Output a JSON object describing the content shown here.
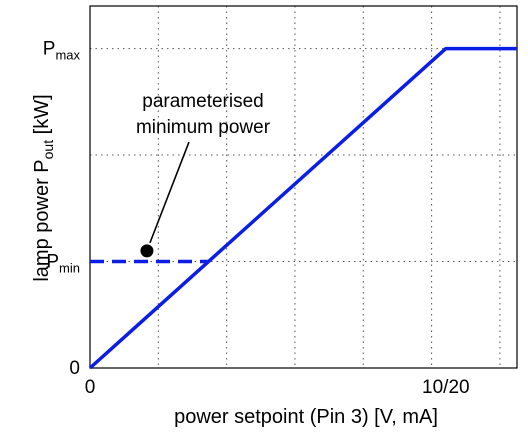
{
  "chart_data": {
    "type": "line",
    "title": "",
    "xlabel": "power setpoint (Pin 3) [V, mA]",
    "ylabel": {
      "main": "lamp power P",
      "sub": "out",
      "unit": " [kW]"
    },
    "x_ticks": [
      {
        "value": 0,
        "label": "0"
      },
      {
        "value": 10,
        "label": "10/20"
      }
    ],
    "y_ticks": [
      {
        "value": 0,
        "label": "0",
        "sub": ""
      },
      {
        "value": 2,
        "label": "P",
        "sub": "min"
      },
      {
        "value": 6,
        "label": "P",
        "sub": "max"
      }
    ],
    "xlim": [
      0,
      12
    ],
    "ylim": [
      0,
      6.8
    ],
    "grid": true,
    "series": [
      {
        "style": "solid",
        "color": "#0a1ee6",
        "x": [
          0,
          3.33,
          10,
          12
        ],
        "y": [
          0,
          2,
          6,
          6
        ]
      },
      {
        "style": "dashed",
        "color": "#0a1ee6",
        "x": [
          0,
          3.33
        ],
        "y": [
          2,
          2
        ]
      }
    ],
    "annotation": {
      "text_lines": [
        "parameterised",
        "minimum power"
      ],
      "point": {
        "x": 1.6,
        "y": 2.2
      }
    }
  }
}
